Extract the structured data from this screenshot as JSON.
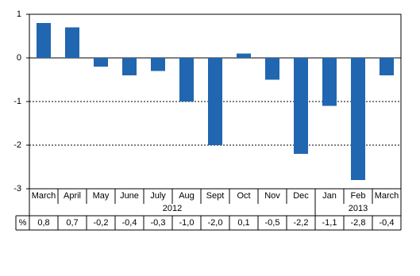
{
  "chart_data": {
    "type": "bar",
    "categories": [
      "March",
      "April",
      "May",
      "June",
      "July",
      "Aug",
      "Sept",
      "Oct",
      "Nov",
      "Dec",
      "Jan",
      "Feb",
      "March"
    ],
    "years": [
      "2012",
      "2013"
    ],
    "values": [
      0.8,
      0.7,
      -0.2,
      -0.4,
      -0.3,
      -1.0,
      -2.0,
      0.1,
      -0.5,
      -2.2,
      -1.1,
      -2.8,
      -0.4
    ],
    "value_labels": [
      "0,8",
      "0,7",
      "-0,2",
      "-0,4",
      "-0,3",
      "-1,0",
      "-2,0",
      "0,1",
      "-0,5",
      "-2,2",
      "-1,1",
      "-2,8",
      "-0,4"
    ],
    "table_unit": "%",
    "color": "#2166b0",
    "ylim": [
      -3,
      1
    ],
    "yticks": [
      1,
      0,
      -1,
      -2,
      -3
    ],
    "grid": true
  }
}
